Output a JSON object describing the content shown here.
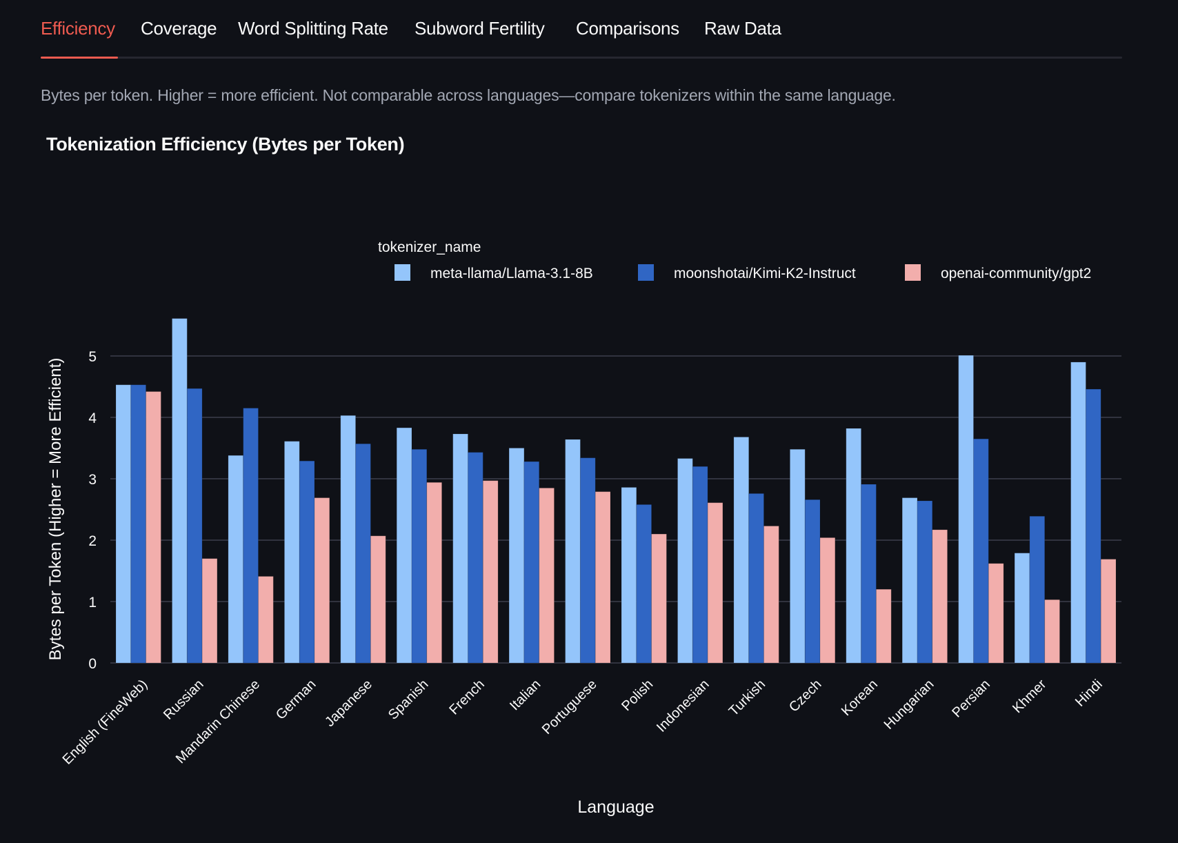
{
  "tabs": [
    {
      "label": "Efficiency",
      "active": true
    },
    {
      "label": "Coverage",
      "active": false
    },
    {
      "label": "Word Splitting Rate",
      "active": false
    },
    {
      "label": "Subword Fertility",
      "active": false
    },
    {
      "label": "Comparisons",
      "active": false
    },
    {
      "label": "Raw Data",
      "active": false
    }
  ],
  "description": "Bytes per token. Higher = more efficient. Not comparable across languages—compare tokenizers within the same language.",
  "colors": {
    "background": "#0f1117",
    "accent": "#ef5b50",
    "text": "#fafafa",
    "muted": "#a3a8b4",
    "grid": "#31333f"
  },
  "chart_data": {
    "type": "bar",
    "title": "Tokenization Efficiency (Bytes per Token)",
    "xlabel": "Language",
    "ylabel": "Bytes per Token (Higher = More Efficient)",
    "ylim": [
      0,
      5.7
    ],
    "yticks": [
      0,
      1,
      2,
      3,
      4,
      5
    ],
    "grid": true,
    "legend": {
      "title": "tokenizer_name",
      "placement": "top-right"
    },
    "categories": [
      "English (FineWeb)",
      "Russian",
      "Mandarin Chinese",
      "German",
      "Japanese",
      "Spanish",
      "French",
      "Italian",
      "Portuguese",
      "Polish",
      "Indonesian",
      "Turkish",
      "Czech",
      "Korean",
      "Hungarian",
      "Persian",
      "Khmer",
      "Hindi"
    ],
    "series": [
      {
        "name": "meta-llama/Llama-3.1-8B",
        "color": "#94c5fb",
        "values": [
          4.53,
          5.61,
          3.38,
          3.61,
          4.03,
          3.83,
          3.73,
          3.5,
          3.64,
          2.86,
          3.33,
          3.68,
          3.48,
          3.82,
          2.69,
          5.01,
          1.79,
          4.9
        ]
      },
      {
        "name": "moonshotai/Kimi-K2-Instruct",
        "color": "#3066c4",
        "values": [
          4.53,
          4.47,
          4.15,
          3.29,
          3.57,
          3.48,
          3.43,
          3.28,
          3.34,
          2.58,
          3.2,
          2.76,
          2.66,
          2.91,
          2.64,
          3.65,
          2.39,
          4.46
        ]
      },
      {
        "name": "openai-community/gpt2",
        "color": "#f2aeac",
        "values": [
          4.42,
          1.7,
          1.41,
          2.69,
          2.07,
          2.94,
          2.97,
          2.85,
          2.79,
          2.1,
          2.61,
          2.23,
          2.04,
          1.2,
          2.17,
          1.62,
          1.03,
          1.69
        ]
      }
    ]
  }
}
